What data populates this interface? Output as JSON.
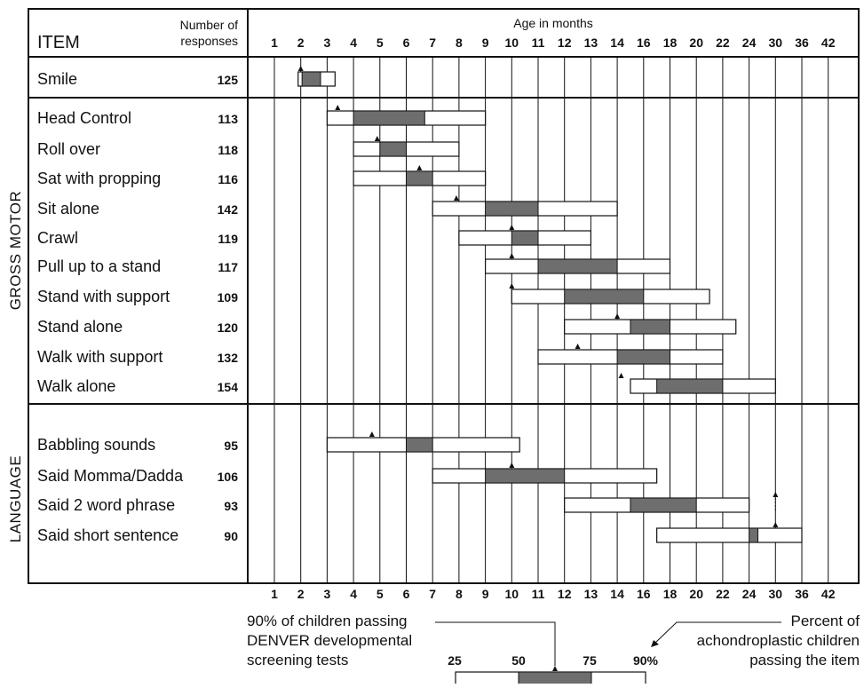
{
  "chart_data": {
    "type": "range-bar",
    "header": {
      "item": "ITEM",
      "responses_line1": "Number of",
      "responses_line2": "responses",
      "age": "Age in months"
    },
    "ticks": [
      "1",
      "2",
      "3",
      "4",
      "5",
      "6",
      "7",
      "8",
      "9",
      "10",
      "11",
      "12",
      "13",
      "14",
      "16",
      "18",
      "20",
      "22",
      "24",
      "30",
      "36",
      "42"
    ],
    "sections": [
      {
        "name": "",
        "items": [
          {
            "label": "Smile",
            "n": "125",
            "p25": 1.9,
            "p50": 2.05,
            "p75": 2.75,
            "p90": 3.3,
            "marker": 2.0
          }
        ]
      },
      {
        "name": "GROSS MOTOR",
        "items": [
          {
            "label": "Head Control",
            "n": "113",
            "p25": 3.0,
            "p50": 4.0,
            "p75": 6.7,
            "p90": 9.0,
            "marker": 3.4
          },
          {
            "label": "Roll over",
            "n": "118",
            "p25": 4.0,
            "p50": 5.0,
            "p75": 6.0,
            "p90": 8.0,
            "marker": 4.9
          },
          {
            "label": "Sat with propping",
            "n": "116",
            "p25": 4.0,
            "p50": 6.0,
            "p75": 7.0,
            "p90": 9.0,
            "marker": 6.5
          },
          {
            "label": "Sit alone",
            "n": "142",
            "p25": 7.0,
            "p50": 9.0,
            "p75": 11.0,
            "p90": 14.0,
            "marker": 7.9
          },
          {
            "label": "Crawl",
            "n": "119",
            "p25": 8.0,
            "p50": 10.0,
            "p75": 11.0,
            "p90": 13.0,
            "marker": 10.0
          },
          {
            "label": "Pull up to a stand",
            "n": "117",
            "p25": 9.0,
            "p50": 11.0,
            "p75": 14.0,
            "p90": 18.0,
            "marker": 10.0
          },
          {
            "label": "Stand with support",
            "n": "109",
            "p25": 10.0,
            "p50": 12.0,
            "p75": 16.0,
            "p90": 21.0,
            "marker": 10.0
          },
          {
            "label": "Stand alone",
            "n": "120",
            "p25": 12.0,
            "p50": 15.0,
            "p75": 18.0,
            "p90": 23.0,
            "marker": 14.0
          },
          {
            "label": "Walk with support",
            "n": "132",
            "p25": 11.0,
            "p50": 14.0,
            "p75": 18.0,
            "p90": 22.0,
            "marker": 12.5
          },
          {
            "label": "Walk alone",
            "n": "154",
            "p25": 15.0,
            "p50": 17.0,
            "p75": 22.0,
            "p90": 30.0,
            "marker": 14.3
          }
        ]
      },
      {
        "name": "LANGUAGE",
        "items": [
          {
            "label": "Babbling sounds",
            "n": "95",
            "p25": 3.0,
            "p50": 6.0,
            "p75": 7.0,
            "p90": 10.3,
            "marker": 4.7
          },
          {
            "label": "Said Momma/Dadda",
            "n": "106",
            "p25": 7.0,
            "p50": 9.0,
            "p75": 12.0,
            "p90": 17.0,
            "marker": 10.0
          },
          {
            "label": "Said 2 word phrase",
            "n": "93",
            "p25": 12.0,
            "p50": 15.0,
            "p75": 20.0,
            "p90": 24.0,
            "marker": 30.0
          },
          {
            "label": "Said short sentence",
            "n": "90",
            "p25": 17.0,
            "p50": 24.0,
            "p75": 26.0,
            "p90": 36.0,
            "marker": 30.0
          }
        ]
      }
    ],
    "legend": {
      "left_text": [
        "90% of children passing",
        "DENVER developmental",
        "screening tests"
      ],
      "right_text": [
        "Percent of",
        "achondroplastic children",
        "passing the item"
      ],
      "percentiles": [
        "25",
        "50",
        "75",
        "90%"
      ]
    },
    "colors": {
      "shaded": "#6e6e6e",
      "line": "#111111",
      "bar_fill": "#ffffff"
    }
  }
}
